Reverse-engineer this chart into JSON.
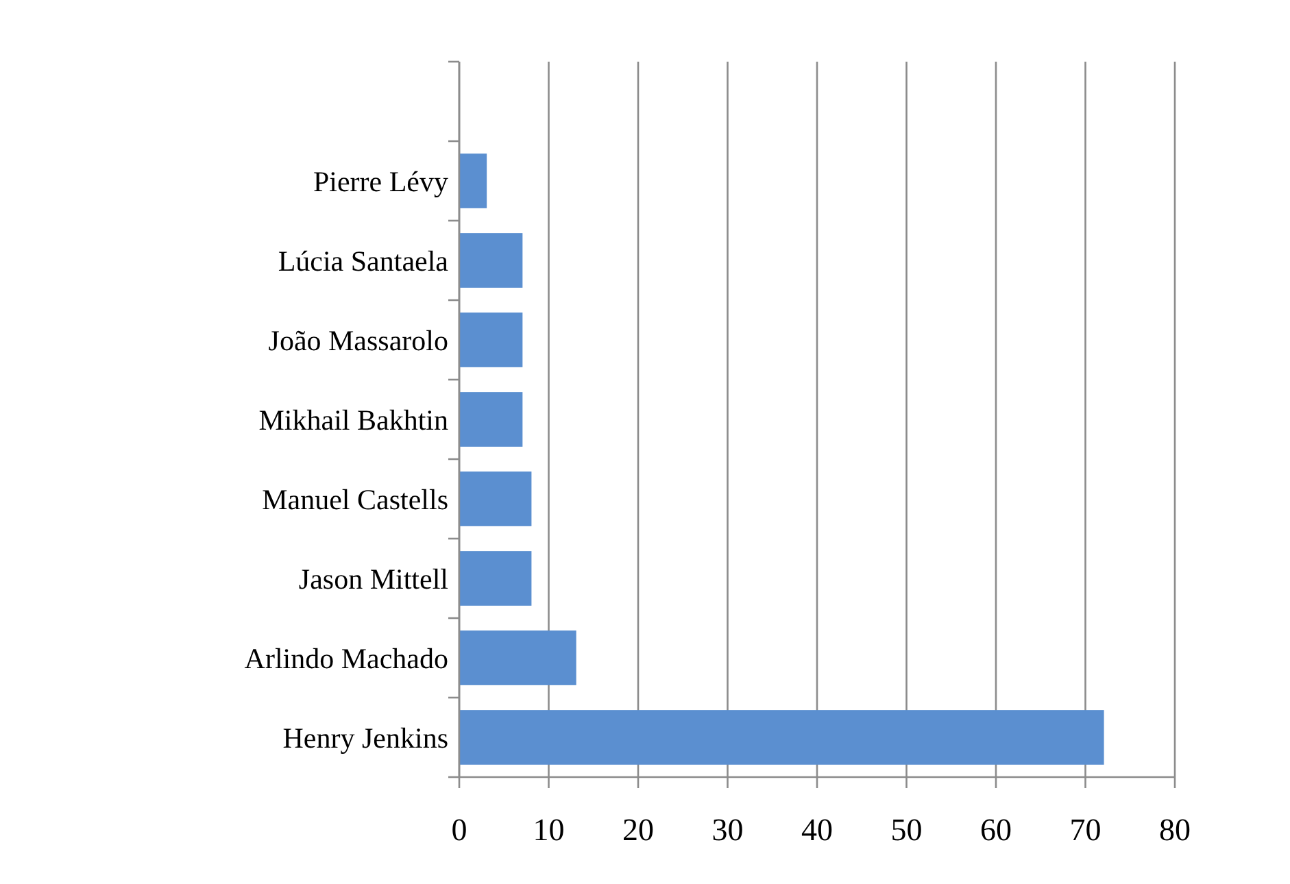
{
  "chart_data": {
    "type": "bar",
    "orientation": "horizontal",
    "categories": [
      null,
      "Pierre Lévy",
      "Lúcia Santaela",
      "João Massarolo",
      "Mikhail Bakhtin",
      "Manuel Castells",
      "Jason Mittell",
      "Arlindo Machado",
      "Henry Jenkins"
    ],
    "values": [
      null,
      3,
      7,
      7,
      7,
      8,
      8,
      13,
      72
    ],
    "color": "#5b8fd0",
    "xlim": [
      0,
      80
    ],
    "xticks": [
      0,
      10,
      20,
      30,
      40,
      50,
      60,
      70,
      80
    ],
    "grid": "x"
  }
}
